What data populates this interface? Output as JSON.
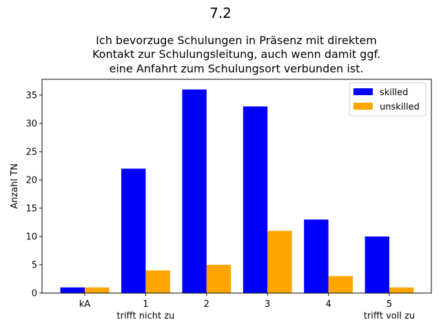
{
  "chart_data": {
    "type": "bar",
    "suptitle": "7.2",
    "title_lines": [
      "Ich bevorzuge Schulungen in Präsenz mit direktem",
      "Kontakt zur Schulungsleitung, auch wenn damit ggf.",
      "eine Anfahrt zum Schulungsort verbunden ist."
    ],
    "xlabel": "",
    "ylabel": "Anzahl TN",
    "categories": [
      "kA",
      "1",
      "2",
      "3",
      "4",
      "5"
    ],
    "category_sublabels": [
      "",
      "trifft nicht zu",
      "",
      "",
      "",
      "trifft voll zu"
    ],
    "ylim": [
      0,
      37.8
    ],
    "yticks": [
      0,
      5,
      10,
      15,
      20,
      25,
      30,
      35
    ],
    "series": [
      {
        "name": "skilled",
        "color": "#0000ff",
        "values": [
          1,
          22,
          36,
          33,
          13,
          10
        ]
      },
      {
        "name": "unskilled",
        "color": "#ffa500",
        "values": [
          1,
          4,
          5,
          11,
          3,
          1
        ]
      }
    ],
    "legend": "top-right",
    "grid": false
  }
}
